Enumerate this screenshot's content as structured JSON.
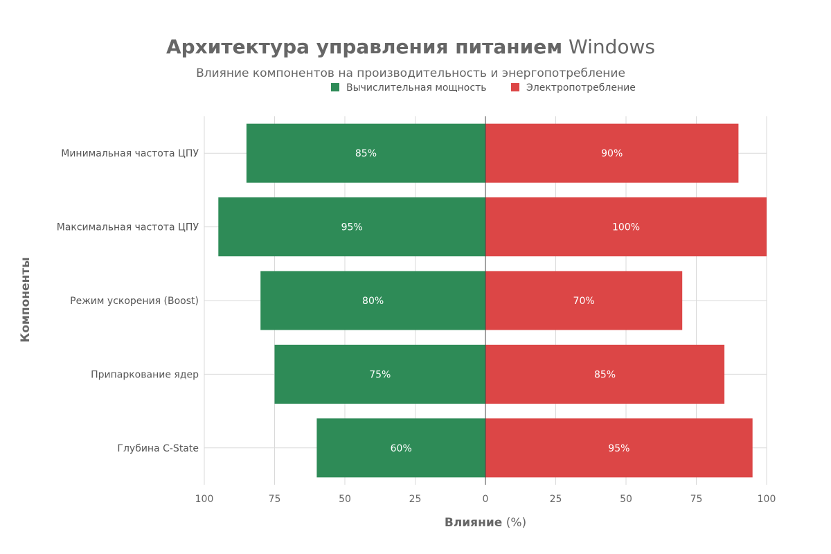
{
  "chart_data": {
    "type": "bar",
    "orientation": "horizontal-diverging",
    "title_bold": "Архитектура управления питанием",
    "title_normal": "Windows",
    "subtitle": "Влияние компонентов на производительность и энергопотребление",
    "xlabel_bold": "Влияние",
    "xlabel_normal": "(%)",
    "ylabel": "Компоненты",
    "categories": [
      "Минимальная частота ЦПУ",
      "Максимальная частота ЦПУ",
      "Режим ускорения (Boost)",
      "Припаркование ядер",
      "Глубина C-State"
    ],
    "series": [
      {
        "name": "Вычислительная мощность",
        "direction": "left",
        "color": "#2e8b57",
        "values": [
          85,
          95,
          80,
          75,
          60
        ],
        "labels": [
          "85%",
          "95%",
          "80%",
          "75%",
          "60%"
        ]
      },
      {
        "name": "Электропотребление",
        "direction": "right",
        "color": "#dc4646",
        "values": [
          90,
          100,
          70,
          85,
          95
        ],
        "labels": [
          "90%",
          "100%",
          "70%",
          "85%",
          "95%"
        ]
      }
    ],
    "xlim": [
      -100,
      100
    ],
    "xticks": [
      -100,
      -75,
      -50,
      -25,
      0,
      25,
      50,
      75,
      100
    ],
    "xtick_labels": [
      "100",
      "75",
      "50",
      "25",
      "0",
      "25",
      "50",
      "75",
      "100"
    ],
    "grid": true,
    "legend_position": "top-center"
  }
}
